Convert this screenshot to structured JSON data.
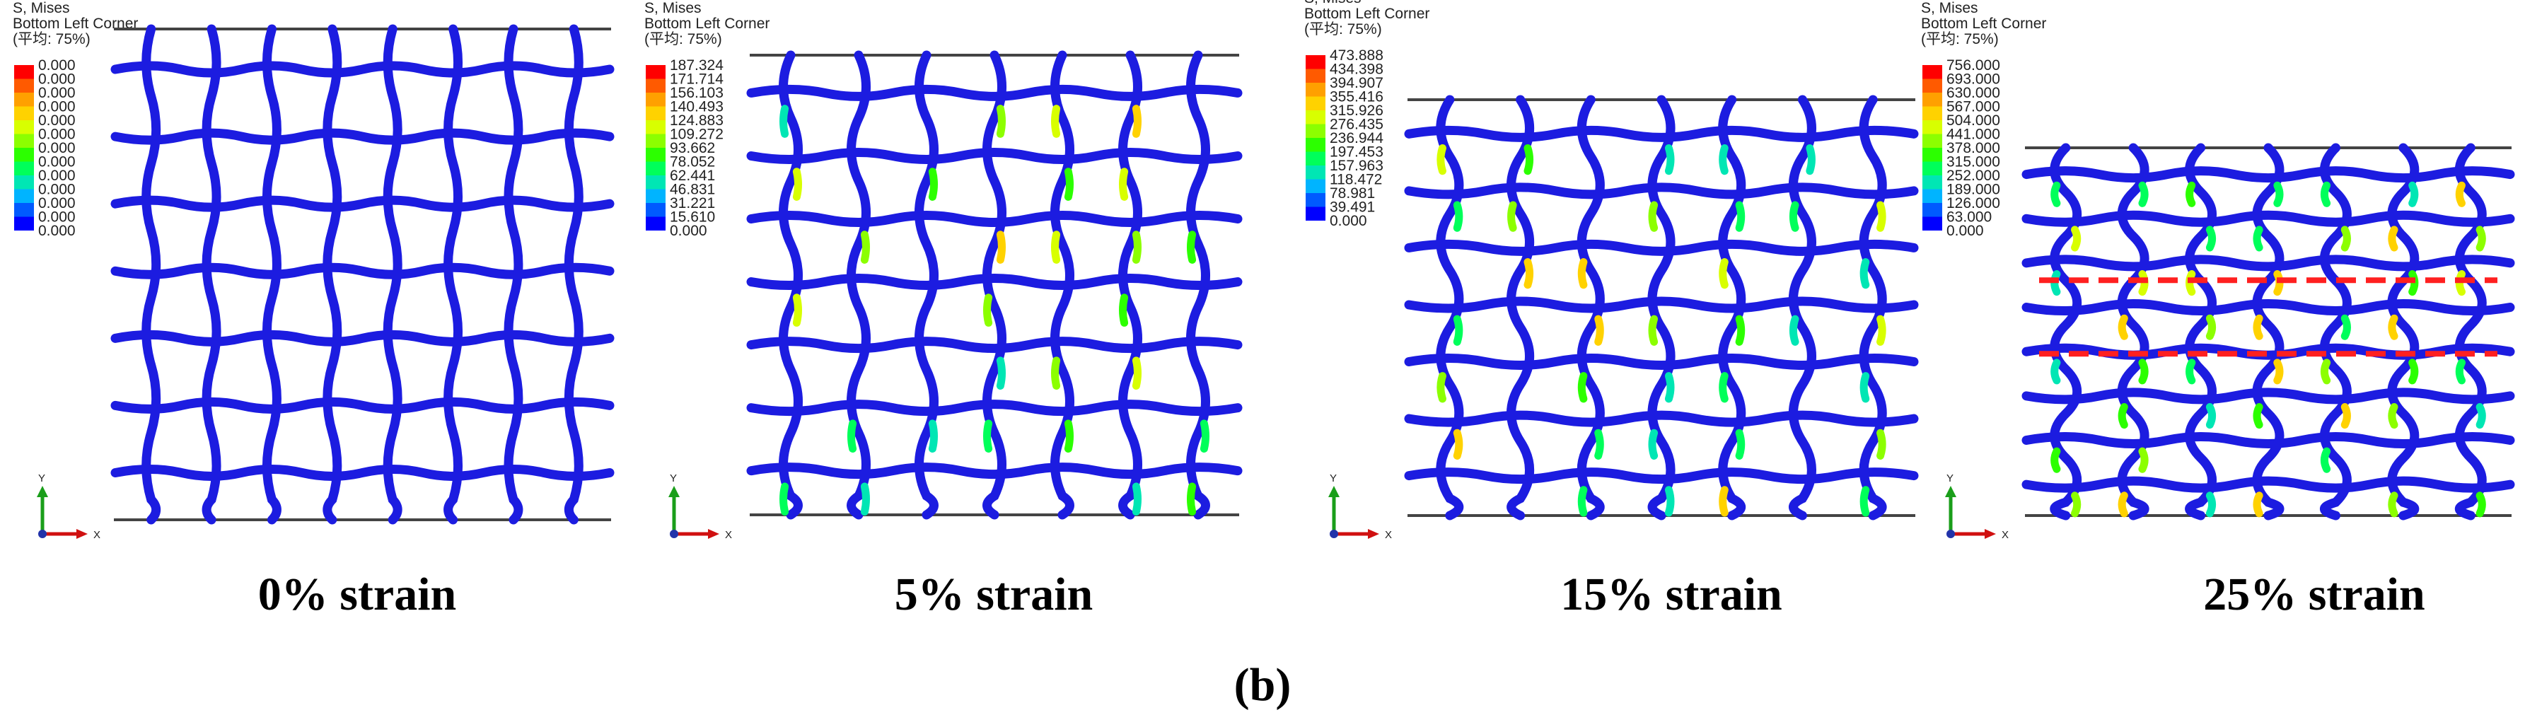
{
  "panels": [
    {
      "legend": {
        "title": [
          "S, Mises",
          "Bottom Left Corner",
          "(平均: 75%)"
        ],
        "values": [
          "0.000",
          "0.000",
          "0.000",
          "0.000",
          "0.000",
          "0.000",
          "0.000",
          "0.000",
          "0.000",
          "0.000",
          "0.000",
          "0.000",
          "0.000"
        ]
      },
      "axes": {
        "y": "Y",
        "x": "X"
      },
      "caption": "0% strain"
    },
    {
      "legend": {
        "title": [
          "S, Mises",
          "Bottom Left Corner",
          "(平均: 75%)"
        ],
        "values": [
          "187.324",
          "171.714",
          "156.103",
          "140.493",
          "124.883",
          "109.272",
          "93.662",
          "78.052",
          "62.441",
          "46.831",
          "31.221",
          "15.610",
          "0.000"
        ]
      },
      "axes": {
        "y": "Y",
        "x": "X"
      },
      "caption": "5% strain"
    },
    {
      "legend": {
        "title": [
          "S, Mises",
          "Bottom Left Corner",
          "(平均: 75%)"
        ],
        "values": [
          "473.888",
          "434.398",
          "394.907",
          "355.416",
          "315.926",
          "276.435",
          "236.944",
          "197.453",
          "157.963",
          "118.472",
          "78.981",
          "39.491",
          "0.000"
        ]
      },
      "axes": {
        "y": "Y",
        "x": "X"
      },
      "caption": "15% strain"
    },
    {
      "legend": {
        "title": [
          "S, Mises",
          "Bottom Left Corner",
          "(平均: 75%)"
        ],
        "values": [
          "756.000",
          "693.000",
          "630.000",
          "567.000",
          "504.000",
          "441.000",
          "378.000",
          "315.000",
          "252.000",
          "189.000",
          "126.000",
          "63.000",
          "0.000"
        ]
      },
      "axes": {
        "y": "Y",
        "x": "X"
      },
      "caption": "25% strain"
    }
  ],
  "figure_label": "(b)"
}
